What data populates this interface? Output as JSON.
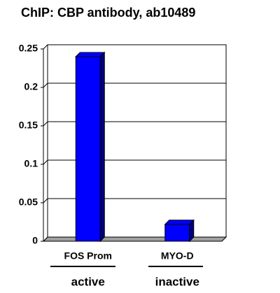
{
  "chart_data": {
    "type": "bar3d",
    "title": "ChIP: CBP antibody, ab10489",
    "categories": [
      "FOS Prom",
      "MYO-D"
    ],
    "values": [
      0.24,
      0.022
    ],
    "color": "#0000ff",
    "side_color": "#000080",
    "annotations": [
      "active",
      "inactive"
    ],
    "ylim": [
      0,
      0.25
    ],
    "yticks": [
      0,
      0.05,
      0.1,
      0.15,
      0.2,
      0.25
    ],
    "grid": true
  }
}
